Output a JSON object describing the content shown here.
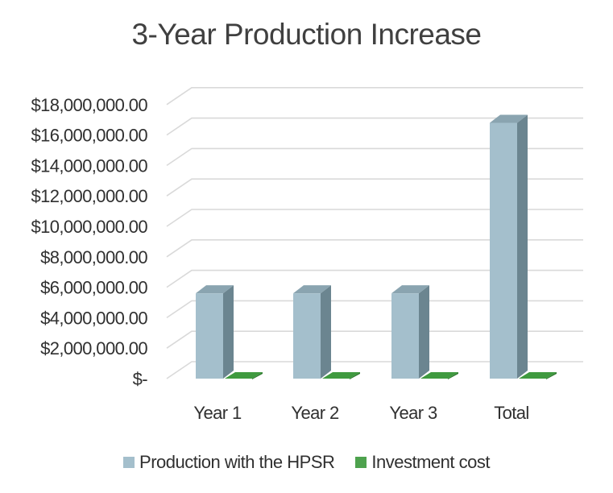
{
  "chart_data": {
    "type": "bar",
    "style": "3d-clustered-column",
    "title": "3-Year Production Increase",
    "categories": [
      "Year 1",
      "Year 2",
      "Year 3",
      "Total"
    ],
    "series": [
      {
        "name": "Production with the HPSR",
        "color": "#a4bfcc",
        "side_color": "#6b8590",
        "top_color": "#8aa4b0",
        "values": [
          5600000,
          5600000,
          5600000,
          16800000
        ]
      },
      {
        "name": "Investment cost",
        "color": "#4ea24e",
        "side_color": "#2e7a2e",
        "top_color": "#3f9a3f",
        "values": [
          0,
          0,
          0,
          0
        ]
      }
    ],
    "ylim": [
      0,
      18000000
    ],
    "ytick_step": 2000000,
    "ytick_labels": [
      "$-",
      "$2,000,000.00",
      "$4,000,000.00",
      "$6,000,000.00",
      "$8,000,000.00",
      "$10,000,000.00",
      "$12,000,000.00",
      "$14,000,000.00",
      "$16,000,000.00",
      "$18,000,000.00"
    ],
    "xlabel": "",
    "ylabel": "",
    "grid": true,
    "legend_position": "bottom"
  }
}
